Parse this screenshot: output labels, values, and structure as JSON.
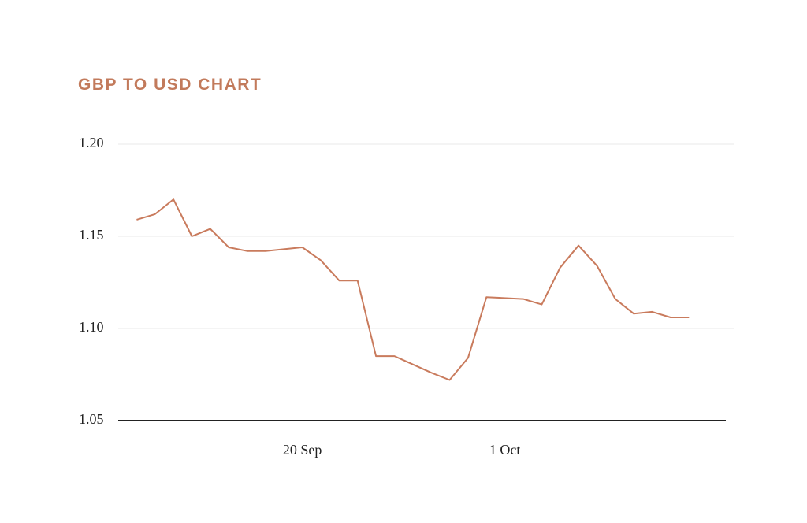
{
  "chart_data": {
    "type": "line",
    "title": "GBP TO USD CHART",
    "x": [
      "11 Sep",
      "12 Sep",
      "13 Sep",
      "14 Sep",
      "15 Sep",
      "16 Sep",
      "17 Sep",
      "18 Sep",
      "20 Sep",
      "21 Sep",
      "22 Sep",
      "23 Sep",
      "24 Sep",
      "25 Sep",
      "27 Sep",
      "28 Sep",
      "29 Sep",
      "30 Sep",
      "2 Oct",
      "3 Oct",
      "4 Oct",
      "5 Oct",
      "6 Oct",
      "7 Oct",
      "8 Oct",
      "9 Oct",
      "10 Oct",
      "11 Oct"
    ],
    "series": [
      {
        "color": "#c97b5d",
        "values": [
          1.159,
          1.162,
          1.17,
          1.15,
          1.154,
          1.144,
          1.142,
          1.142,
          1.144,
          1.137,
          1.126,
          1.126,
          1.085,
          1.085,
          1.076,
          1.072,
          1.084,
          1.117,
          1.116,
          1.113,
          1.133,
          1.145,
          1.134,
          1.116,
          1.108,
          1.109,
          1.106,
          1.106
        ]
      }
    ],
    "xlim": [
      "10 Sep",
      "13 Oct"
    ],
    "xticks": [
      "20 Sep",
      "1 Oct"
    ],
    "ylim": [
      1.05,
      1.2
    ],
    "yticks": [
      {
        "value": 1.05,
        "label": "1.05"
      },
      {
        "value": 1.1,
        "label": "1.10"
      },
      {
        "value": 1.15,
        "label": "1.15"
      },
      {
        "value": 1.2,
        "label": "1.20"
      }
    ],
    "grid": true
  }
}
